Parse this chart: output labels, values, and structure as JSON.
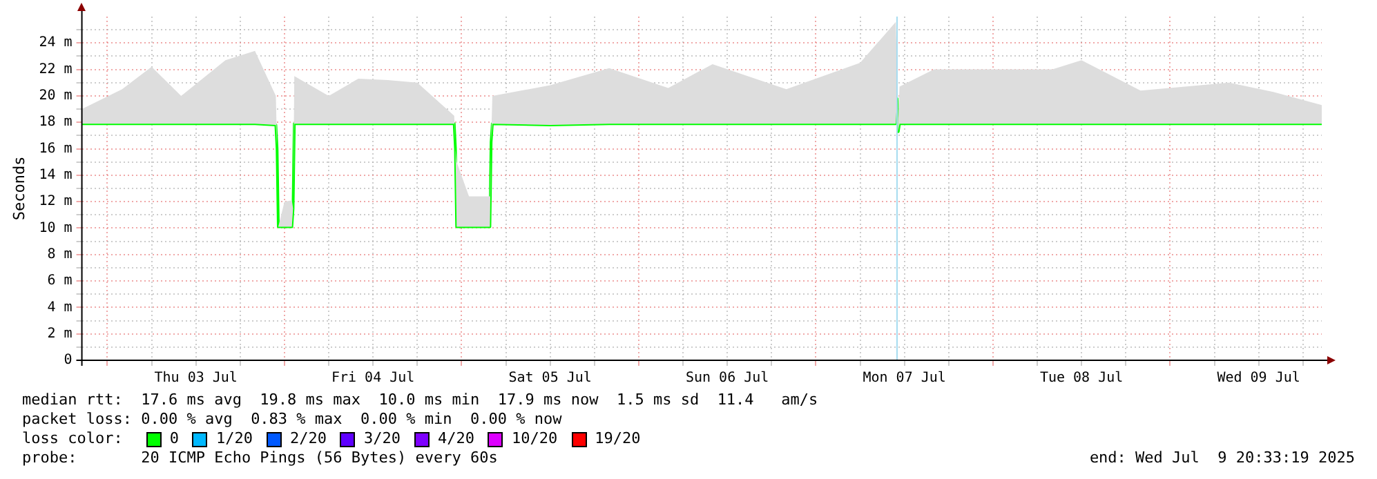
{
  "chart_data": {
    "type": "line",
    "ylabel": "Seconds",
    "x": [
      "2025-07-02T20:33",
      "2025-07-03T02:00",
      "2025-07-03T06:00",
      "2025-07-03T10:00",
      "2025-07-03T16:00",
      "2025-07-03T20:00",
      "2025-07-03T22:50",
      "2025-07-03T23:00",
      "2025-07-03T23:10",
      "2025-07-04T00:00",
      "2025-07-04T01:00",
      "2025-07-04T01:10",
      "2025-07-04T01:20",
      "2025-07-04T06:00",
      "2025-07-04T10:00",
      "2025-07-04T14:00",
      "2025-07-04T18:00",
      "2025-07-04T23:00",
      "2025-07-04T23:10",
      "2025-07-04T23:20",
      "2025-07-05T01:00",
      "2025-07-05T03:50",
      "2025-07-05T04:00",
      "2025-07-05T04:10",
      "2025-07-05T12:00",
      "2025-07-05T20:00",
      "2025-07-06T04:00",
      "2025-07-06T10:00",
      "2025-07-06T20:00",
      "2025-07-07T06:00",
      "2025-07-07T10:50",
      "2025-07-07T11:00",
      "2025-07-07T11:10",
      "2025-07-07T11:20",
      "2025-07-07T16:00",
      "2025-07-08T08:00",
      "2025-07-08T12:00",
      "2025-07-08T20:00",
      "2025-07-09T08:00",
      "2025-07-09T14:00",
      "2025-07-09T20:33"
    ],
    "series": [
      {
        "color": "#00ff00",
        "values": [
          17.9,
          17.9,
          17.9,
          17.9,
          17.9,
          17.9,
          17.8,
          16,
          10.1,
          10.1,
          10.1,
          11.5,
          17.9,
          17.9,
          17.9,
          17.9,
          17.9,
          17.9,
          16,
          10.1,
          10.1,
          10.1,
          16.5,
          17.9,
          17.8,
          17.9,
          17.9,
          17.9,
          17.9,
          17.9,
          17.9,
          19.8,
          17.3,
          17.9,
          17.9,
          17.9,
          17.9,
          17.9,
          17.9,
          17.9,
          17.9
        ],
        "lower": [
          17.9,
          17.9,
          17.9,
          17.9,
          17.9,
          17.9,
          17.8,
          16,
          10.1,
          10.1,
          10.1,
          11.5,
          17.9,
          17.9,
          17.9,
          17.9,
          17.9,
          17.9,
          16,
          10.1,
          10.1,
          10.1,
          16.5,
          17.9,
          17.8,
          17.9,
          17.9,
          17.9,
          17.9,
          17.9,
          17.9,
          19.8,
          17.3,
          17.9,
          17.9,
          17.9,
          17.9,
          17.9,
          17.9,
          17.9,
          17.9
        ],
        "upper": [
          19,
          20.5,
          22.2,
          20,
          22.7,
          23.4,
          20,
          16,
          10.1,
          12,
          12.1,
          11.5,
          21.5,
          20,
          21.3,
          21.2,
          21,
          18.5,
          16,
          15,
          12.4,
          12.4,
          16.5,
          20,
          20.8,
          22.1,
          20.6,
          22.4,
          20.5,
          22.5,
          25.6,
          22,
          18,
          20.7,
          22,
          22,
          22.7,
          20.4,
          21,
          20.3,
          19.3
        ]
      }
    ],
    "xlim": [
      "2025-07-02T20:33",
      "2025-07-09T20:33"
    ],
    "xticks": [
      {
        "value": "2025-07-03T00:00",
        "label": null
      },
      {
        "value": "2025-07-03T06:00",
        "label": null
      },
      {
        "value": "2025-07-03T12:00",
        "label": "Thu 03 Jul"
      },
      {
        "value": "2025-07-03T18:00",
        "label": null
      },
      {
        "value": "2025-07-04T00:00",
        "label": null
      },
      {
        "value": "2025-07-04T06:00",
        "label": null
      },
      {
        "value": "2025-07-04T12:00",
        "label": "Fri 04 Jul"
      },
      {
        "value": "2025-07-04T18:00",
        "label": null
      },
      {
        "value": "2025-07-05T00:00",
        "label": null
      },
      {
        "value": "2025-07-05T06:00",
        "label": null
      },
      {
        "value": "2025-07-05T12:00",
        "label": "Sat 05 Jul"
      },
      {
        "value": "2025-07-05T18:00",
        "label": null
      },
      {
        "value": "2025-07-06T00:00",
        "label": null
      },
      {
        "value": "2025-07-06T06:00",
        "label": null
      },
      {
        "value": "2025-07-06T12:00",
        "label": "Sun 06 Jul"
      },
      {
        "value": "2025-07-06T18:00",
        "label": null
      },
      {
        "value": "2025-07-07T00:00",
        "label": null
      },
      {
        "value": "2025-07-07T06:00",
        "label": null
      },
      {
        "value": "2025-07-07T12:00",
        "label": "Mon 07 Jul"
      },
      {
        "value": "2025-07-07T18:00",
        "label": null
      },
      {
        "value": "2025-07-08T00:00",
        "label": null
      },
      {
        "value": "2025-07-08T06:00",
        "label": null
      },
      {
        "value": "2025-07-08T12:00",
        "label": "Tue 08 Jul"
      },
      {
        "value": "2025-07-08T18:00",
        "label": null
      },
      {
        "value": "2025-07-09T00:00",
        "label": null
      },
      {
        "value": "2025-07-09T06:00",
        "label": null
      },
      {
        "value": "2025-07-09T12:00",
        "label": "Wed 09 Jul"
      },
      {
        "value": "2025-07-09T18:00",
        "label": null
      }
    ],
    "ylim": [
      0,
      26
    ],
    "yticks": [
      0,
      {
        "value": 1,
        "label": null
      },
      {
        "value": 2,
        "label": "2 m"
      },
      {
        "value": 3,
        "label": null
      },
      {
        "value": 4,
        "label": "4 m"
      },
      {
        "value": 5,
        "label": null
      },
      {
        "value": 6,
        "label": "6 m"
      },
      {
        "value": 7,
        "label": null
      },
      {
        "value": 8,
        "label": "8 m"
      },
      {
        "value": 9,
        "label": null
      },
      {
        "value": 10,
        "label": "10 m"
      },
      {
        "value": 11,
        "label": null
      },
      {
        "value": 12,
        "label": "12 m"
      },
      {
        "value": 13,
        "label": null
      },
      {
        "value": 14,
        "label": "14 m"
      },
      {
        "value": 15,
        "label": null
      },
      {
        "value": 16,
        "label": "16 m"
      },
      {
        "value": 17,
        "label": null
      },
      {
        "value": 18,
        "label": "18 m"
      },
      {
        "value": 19,
        "label": null
      },
      {
        "value": 20,
        "label": "20 m"
      },
      {
        "value": 21,
        "label": null
      },
      {
        "value": 22,
        "label": "22 m"
      },
      {
        "value": 23,
        "label": null
      },
      {
        "value": 24,
        "label": "24 m"
      },
      {
        "value": 25,
        "label": null
      }
    ],
    "grid": true,
    "marker": "none",
    "line_style": "solid",
    "ref_lines": [
      {
        "axis": "x",
        "value": "2025-07-07T11:00",
        "color": "#a6dcf0"
      }
    ],
    "annotations": [
      "median rtt:  17.6 ms avg  19.8 ms max  10.0 ms min  17.9 ms now  1.5 ms sd  11.4   am/s",
      "packet loss: 0.00 % avg  0.83 % max  0.00 % min  0.00 % now",
      "loss color:",
      "0",
      "1/20",
      "2/20",
      "3/20",
      "4/20",
      "10/20",
      "19/20",
      "probe:       20 ICMP Echo Pings (56 Bytes) every 60s",
      "end: Wed Jul  9 20:33:19 2025"
    ]
  }
}
